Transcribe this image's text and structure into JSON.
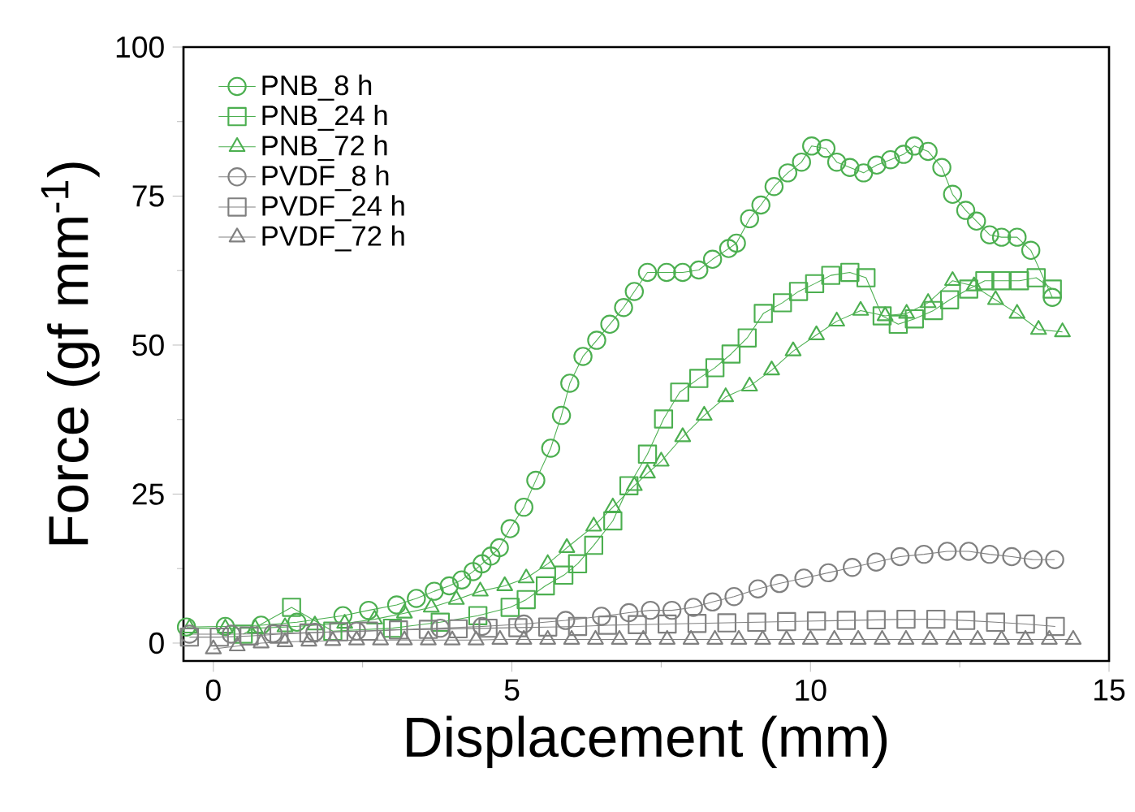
{
  "chart_data": {
    "type": "line",
    "xlabel": "Displacement (mm)",
    "ylabel": "Force (gf mm$^{-1}$)",
    "xlim": [
      -0.5,
      15
    ],
    "ylim": [
      -3,
      100
    ],
    "xticks": [
      0,
      5,
      10,
      15
    ],
    "yticks": [
      0,
      25,
      50,
      75,
      100
    ],
    "grid": false,
    "legend": "top left",
    "line_style": "solid",
    "series": [
      {
        "name": "PNB_8 h",
        "color": "#4caf50",
        "marker": "circle",
        "x": [
          -0.45,
          0.2,
          0.8,
          1.4,
          2.17,
          2.6,
          3.07,
          3.4,
          3.7,
          3.95,
          4.16,
          4.35,
          4.5,
          4.65,
          4.79,
          4.97,
          5.2,
          5.4,
          5.65,
          5.83,
          5.97,
          6.19,
          6.42,
          6.64,
          6.87,
          7.05,
          7.27,
          7.59,
          7.86,
          8.13,
          8.36,
          8.63,
          8.76,
          8.98,
          9.17,
          9.39,
          9.62,
          9.85,
          10.02,
          10.26,
          10.44,
          10.66,
          10.89,
          11.11,
          11.34,
          11.56,
          11.74,
          11.97,
          12.2,
          12.38,
          12.6,
          12.78,
          13.0,
          13.2,
          13.46,
          13.69,
          14.05
        ],
        "values": [
          2.7,
          2.8,
          3.0,
          3.5,
          4.6,
          5.5,
          6.4,
          7.5,
          8.7,
          9.6,
          10.6,
          12.0,
          13.3,
          14.6,
          16,
          19.2,
          22.8,
          27.3,
          32.7,
          38.2,
          43.6,
          48.1,
          50.8,
          53.5,
          56.3,
          59,
          62.2,
          62.2,
          62.2,
          62.6,
          64.4,
          66.2,
          67.1,
          71.2,
          73.5,
          76.6,
          78.9,
          80.7,
          83.4,
          83,
          80.7,
          79.8,
          78.9,
          80.2,
          81.1,
          82,
          83.4,
          82.5,
          79.8,
          75.3,
          72.6,
          70.8,
          68.5,
          68.1,
          68.1,
          65.9,
          58
        ]
      },
      {
        "name": "PNB_24 h",
        "color": "#4caf50",
        "marker": "square",
        "x": [
          0.5,
          1.31,
          2.0,
          3.0,
          3.8,
          4.43,
          4.97,
          5.24,
          5.56,
          5.87,
          6.1,
          6.37,
          6.69,
          6.96,
          7.27,
          7.54,
          7.81,
          8.13,
          8.4,
          8.67,
          8.94,
          9.21,
          9.53,
          9.8,
          10.07,
          10.34,
          10.66,
          10.93,
          11.2,
          11.47,
          11.74,
          12.06,
          12.33,
          12.65,
          12.92,
          13.19,
          13.5,
          13.78,
          14.05
        ],
        "values": [
          1.5,
          6.0,
          2.0,
          2.5,
          3.5,
          4.6,
          6.0,
          7.3,
          9.6,
          11.4,
          13.3,
          16.4,
          20.5,
          26.4,
          31.7,
          37.6,
          42.1,
          44.4,
          46.2,
          48.5,
          51.2,
          55.3,
          57.1,
          59,
          60.3,
          61.7,
          62.2,
          61.3,
          54.9,
          53.5,
          54.4,
          55.8,
          57.6,
          59.4,
          60.8,
          60.8,
          60.8,
          61.3,
          59.4
        ]
      },
      {
        "name": "PNB_72 h",
        "color": "#4caf50",
        "marker": "triangle",
        "x": [
          -0.4,
          0.2,
          0.7,
          1.2,
          1.7,
          2.2,
          2.7,
          3.2,
          3.65,
          4.07,
          4.47,
          4.88,
          5.24,
          5.6,
          5.92,
          6.37,
          6.69,
          7.05,
          7.27,
          7.5,
          7.86,
          8.22,
          8.58,
          8.98,
          9.35,
          9.71,
          10.1,
          10.44,
          10.84,
          11.25,
          11.61,
          11.97,
          12.38,
          12.74,
          13.1,
          13.46,
          13.82,
          14.22
        ],
        "values": [
          2.5,
          2.5,
          2.5,
          2.7,
          3.0,
          3.3,
          4.0,
          5.0,
          6.0,
          7.3,
          8.7,
          9.6,
          10.9,
          13.3,
          16,
          19.6,
          22.8,
          26.4,
          28.5,
          30.5,
          34.6,
          38.2,
          41.3,
          43.1,
          45.8,
          49,
          51.7,
          54,
          55.8,
          54.9,
          55.3,
          57.1,
          60.8,
          59.9,
          57.6,
          55.3,
          52.6,
          52.2
        ]
      },
      {
        "name": "PVDF_8 h",
        "color": "#808080",
        "marker": "circle",
        "x": [
          -0.4,
          0.3,
          1.0,
          1.7,
          2.4,
          3.8,
          4.5,
          5.2,
          5.9,
          6.5,
          6.96,
          7.32,
          7.68,
          8.04,
          8.36,
          8.72,
          9.12,
          9.48,
          9.89,
          10.3,
          10.7,
          11.1,
          11.5,
          11.9,
          12.29,
          12.65,
          13.0,
          13.37,
          13.73,
          14.09
        ],
        "values": [
          1.5,
          1.5,
          1.6,
          1.8,
          2.0,
          2.5,
          2.8,
          3.2,
          3.8,
          4.5,
          5.1,
          5.5,
          5.5,
          6.0,
          6.9,
          7.8,
          9.1,
          10,
          10.9,
          11.8,
          12.7,
          13.6,
          14.5,
          14.9,
          15.4,
          15.4,
          14.9,
          14.5,
          14.0,
          14.0
        ]
      },
      {
        "name": "PVDF_24 h",
        "color": "#808080",
        "marker": "square",
        "x": [
          -0.4,
          0.1,
          0.6,
          1.1,
          1.6,
          2.1,
          2.6,
          3.1,
          3.6,
          4.1,
          4.6,
          5.1,
          5.6,
          6.1,
          6.6,
          7.1,
          7.6,
          8.1,
          8.6,
          9.1,
          9.6,
          10.1,
          10.6,
          11.1,
          11.6,
          12.1,
          12.6,
          13.1,
          13.6,
          14.1
        ],
        "values": [
          1.0,
          1.0,
          1.2,
          1.5,
          1.7,
          1.9,
          2.0,
          2.2,
          2.3,
          2.4,
          2.5,
          2.6,
          2.7,
          2.8,
          3.0,
          3.1,
          3.2,
          3.3,
          3.4,
          3.5,
          3.6,
          3.7,
          3.8,
          3.9,
          4.0,
          4.0,
          3.8,
          3.5,
          3.2,
          2.8
        ]
      },
      {
        "name": "PVDF_72 h",
        "color": "#808080",
        "marker": "triangle",
        "x": [
          0.0,
          0.4,
          0.8,
          1.2,
          1.6,
          2.0,
          2.4,
          2.8,
          3.2,
          3.6,
          4.0,
          4.4,
          4.8,
          5.2,
          5.6,
          6.0,
          6.4,
          6.8,
          7.2,
          7.6,
          8.0,
          8.4,
          8.8,
          9.2,
          9.6,
          10.0,
          10.4,
          10.8,
          11.2,
          11.6,
          12.0,
          12.4,
          12.8,
          13.2,
          13.6,
          14.0,
          14.4
        ],
        "values": [
          -1.0,
          -0.5,
          0.0,
          0.2,
          0.3,
          0.4,
          0.5,
          0.5,
          0.5,
          0.5,
          0.5,
          0.5,
          0.6,
          0.6,
          0.6,
          0.6,
          0.6,
          0.6,
          0.6,
          0.6,
          0.6,
          0.6,
          0.6,
          0.6,
          0.6,
          0.6,
          0.6,
          0.6,
          0.6,
          0.6,
          0.6,
          0.6,
          0.6,
          0.6,
          0.6,
          0.6,
          0.6
        ]
      }
    ]
  }
}
